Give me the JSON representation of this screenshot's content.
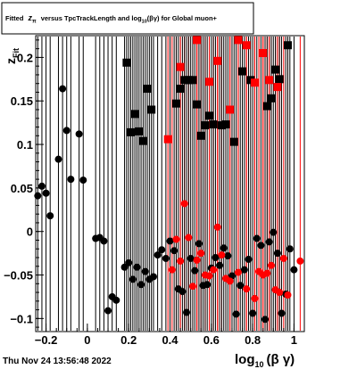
{
  "title": "Fitted z_π versus TpcTrackLength and log_10(βγ) for Global muon+",
  "title_parts": {
    "a": "Fitted",
    "z": "z",
    "pi": "π",
    "b": "versus TpcTrackLength and log",
    "sub": "10",
    "c": "(βγ) for Global muon+"
  },
  "timestamp": "Thu Nov 24 13:56:48 2022",
  "ylabel": {
    "main": "z",
    "sub": "Fit"
  },
  "xlabel": {
    "main": "log",
    "sub": "10",
    "rest": "(β γ)"
  },
  "chart_data": {
    "type": "scatter",
    "xlim": [
      -0.25,
      1.05
    ],
    "ylim": [
      -0.115,
      0.225
    ],
    "x_ticks": [
      {
        "v": -0.2,
        "label": "−0.2"
      },
      {
        "v": 0,
        "label": "0"
      },
      {
        "v": 0.2,
        "label": "0.2"
      },
      {
        "v": 0.4,
        "label": "0.4"
      },
      {
        "v": 0.6,
        "label": "0.6"
      },
      {
        "v": 0.8,
        "label": "0.8"
      },
      {
        "v": 1.0,
        "label": "1"
      }
    ],
    "y_ticks": [
      {
        "v": -0.1,
        "label": "−0.1"
      },
      {
        "v": -0.05,
        "label": "−0.05"
      },
      {
        "v": 0,
        "label": "0"
      },
      {
        "v": 0.05,
        "label": "0.05"
      },
      {
        "v": 0.1,
        "label": "0.1"
      },
      {
        "v": 0.15,
        "label": "0.15"
      },
      {
        "v": 0.2,
        "label": "0.2"
      }
    ],
    "grid": false,
    "colors": {
      "black": "#000000",
      "red": "#ff0000"
    },
    "series": [
      {
        "color": "#000000",
        "marker": "circle",
        "points": [
          [
            -0.24,
            0.041
          ],
          [
            -0.22,
            0.052
          ],
          [
            -0.2,
            0.044
          ],
          [
            -0.18,
            0.018
          ],
          [
            -0.14,
            0.083
          ],
          [
            -0.12,
            0.164
          ],
          [
            -0.1,
            0.116
          ],
          [
            -0.08,
            0.06
          ],
          [
            -0.04,
            0.112
          ],
          [
            -0.02,
            0.059
          ],
          [
            0.04,
            -0.008
          ],
          [
            0.06,
            -0.007
          ],
          [
            0.08,
            -0.011
          ],
          [
            0.1,
            -0.091
          ],
          [
            0.12,
            -0.075
          ],
          [
            0.14,
            -0.079
          ],
          [
            0.18,
            -0.041
          ],
          [
            0.2,
            -0.036
          ],
          [
            0.22,
            -0.055
          ],
          [
            0.24,
            -0.041
          ],
          [
            0.26,
            -0.061
          ],
          [
            0.28,
            -0.046
          ],
          [
            0.3,
            -0.055
          ],
          [
            0.32,
            -0.052
          ],
          [
            0.34,
            -0.027
          ],
          [
            0.36,
            -0.021
          ],
          [
            0.38,
            -0.031
          ],
          [
            0.4,
            -0.011
          ],
          [
            0.42,
            -0.022
          ],
          [
            0.44,
            -0.066
          ],
          [
            0.46,
            -0.069
          ],
          [
            0.48,
            -0.093
          ],
          [
            0.5,
            -0.031
          ],
          [
            0.52,
            -0.045
          ],
          [
            0.54,
            -0.014
          ],
          [
            0.56,
            -0.062
          ],
          [
            0.58,
            -0.061
          ],
          [
            0.6,
            -0.042
          ],
          [
            0.62,
            -0.03
          ],
          [
            0.64,
            -0.039
          ],
          [
            0.66,
            -0.019
          ],
          [
            0.68,
            -0.028
          ],
          [
            0.7,
            -0.051
          ],
          [
            0.72,
            -0.095
          ],
          [
            0.74,
            -0.062
          ],
          [
            0.76,
            -0.044
          ],
          [
            0.78,
            -0.032
          ],
          [
            0.8,
            -0.094
          ],
          [
            0.82,
            -0.008
          ],
          [
            0.84,
            -0.016
          ],
          [
            0.86,
            -0.101
          ],
          [
            0.88,
            -0.012
          ],
          [
            0.9,
            -0.001
          ],
          [
            0.92,
            -0.025
          ],
          [
            0.94,
            -0.094
          ],
          [
            0.96,
            -0.072
          ],
          [
            0.98,
            -0.02
          ],
          [
            1.0,
            -0.044
          ]
        ]
      },
      {
        "color": "#ff0000",
        "marker": "circle",
        "points": [
          [
            0.41,
            -0.044
          ],
          [
            0.43,
            -0.009
          ],
          [
            0.45,
            -0.034
          ],
          [
            0.47,
            0.032
          ],
          [
            0.49,
            -0.007
          ],
          [
            0.51,
            -0.063
          ],
          [
            0.53,
            -0.033
          ],
          [
            0.55,
            -0.025
          ],
          [
            0.57,
            -0.05
          ],
          [
            0.59,
            -0.051
          ],
          [
            0.61,
            -0.044
          ],
          [
            0.63,
            0.005
          ],
          [
            0.65,
            -0.027
          ],
          [
            0.67,
            -0.054
          ],
          [
            0.69,
            -0.057
          ],
          [
            0.73,
            -0.047
          ],
          [
            0.77,
            -0.066
          ],
          [
            0.81,
            -0.077
          ],
          [
            0.83,
            -0.046
          ],
          [
            0.85,
            -0.05
          ],
          [
            0.87,
            -0.048
          ],
          [
            0.89,
            -0.039
          ],
          [
            0.91,
            -0.067
          ],
          [
            0.93,
            -0.07
          ],
          [
            0.95,
            -0.031
          ],
          [
            0.97,
            -0.073
          ],
          [
            1.03,
            -0.034
          ]
        ]
      },
      {
        "color": "#000000",
        "marker": "square",
        "points": [
          [
            0.19,
            0.194
          ],
          [
            0.21,
            0.114
          ],
          [
            0.23,
            0.135
          ],
          [
            0.25,
            0.115
          ],
          [
            0.27,
            0.104
          ],
          [
            0.29,
            0.164
          ],
          [
            0.31,
            0.14
          ],
          [
            0.43,
            0.147
          ],
          [
            0.45,
            0.164
          ],
          [
            0.47,
            0.174
          ],
          [
            0.49,
            0.174
          ],
          [
            0.51,
            0.174
          ],
          [
            0.53,
            0.146
          ],
          [
            0.55,
            0.11
          ],
          [
            0.57,
            0.122
          ],
          [
            0.59,
            0.133
          ],
          [
            0.61,
            0.123
          ],
          [
            0.65,
            0.122
          ],
          [
            0.67,
            0.123
          ],
          [
            0.71,
            0.103
          ],
          [
            0.75,
            0.184
          ],
          [
            0.79,
            0.174
          ],
          [
            0.87,
            0.144
          ],
          [
            0.89,
            0.153
          ],
          [
            0.91,
            0.186
          ],
          [
            0.93,
            0.175
          ],
          [
            0.97,
            0.214
          ]
        ]
      },
      {
        "color": "#ff0000",
        "marker": "square",
        "points": [
          [
            0.39,
            0.106
          ],
          [
            0.45,
            0.189
          ],
          [
            0.53,
            0.22
          ],
          [
            0.59,
            0.172
          ],
          [
            0.63,
            0.196
          ],
          [
            0.69,
            0.14
          ],
          [
            0.73,
            0.22
          ],
          [
            0.77,
            0.214
          ],
          [
            0.81,
            0.171
          ],
          [
            0.85,
            0.205
          ],
          [
            0.88,
            0.174
          ],
          [
            0.92,
            0.166
          ]
        ]
      }
    ]
  }
}
